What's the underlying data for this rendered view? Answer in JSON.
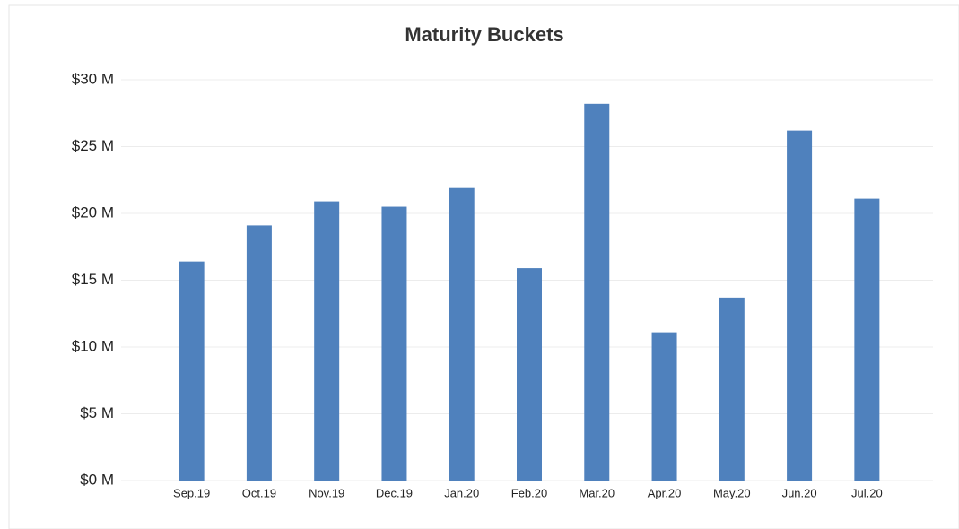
{
  "chart_data": {
    "type": "bar",
    "title": "Maturity Buckets",
    "categories": [
      "Sep.19",
      "Oct.19",
      "Nov.19",
      "Dec.19",
      "Jan.20",
      "Feb.20",
      "Mar.20",
      "Apr.20",
      "May.20",
      "Jun.20",
      "Jul.20"
    ],
    "values": [
      16.4,
      19.1,
      20.9,
      20.5,
      21.9,
      15.9,
      28.2,
      11.1,
      13.7,
      26.2,
      21.1
    ],
    "color": "#4f81bd",
    "ylim": [
      0,
      30
    ],
    "yticks": [
      {
        "value": 0,
        "label": "$0 M"
      },
      {
        "value": 5,
        "label": "$5 M"
      },
      {
        "value": 10,
        "label": "$10 M"
      },
      {
        "value": 15,
        "label": "$15 M"
      },
      {
        "value": 20,
        "label": "$20 M"
      },
      {
        "value": 25,
        "label": "$25 M"
      },
      {
        "value": 30,
        "label": "$30 M"
      }
    ],
    "grid": true
  }
}
